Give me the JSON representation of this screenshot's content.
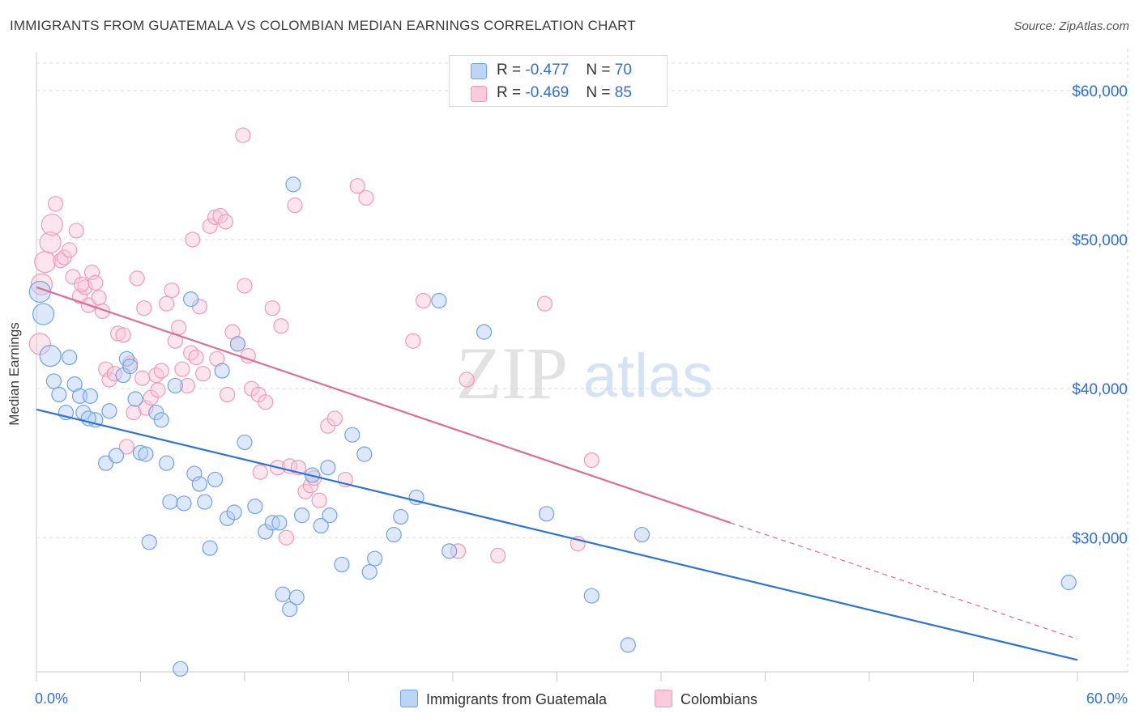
{
  "header": {
    "title": "IMMIGRANTS FROM GUATEMALA VS COLOMBIAN MEDIAN EARNINGS CORRELATION CHART",
    "source": "Source: ZipAtlas.com"
  },
  "watermark": {
    "zip": "ZIP",
    "atlas": "atlas"
  },
  "legend": {
    "rows": [
      {
        "r_label": "R = ",
        "r_value": "-0.477",
        "n_label": "N = ",
        "n_value": "70"
      },
      {
        "r_label": "R = ",
        "r_value": "-0.469",
        "n_label": "N = ",
        "n_value": "85"
      }
    ]
  },
  "chart_data": {
    "type": "scatter",
    "title": "IMMIGRANTS FROM GUATEMALA VS COLOMBIAN MEDIAN EARNINGS CORRELATION CHART",
    "xlabel": "",
    "ylabel": "Median Earnings",
    "xlim": [
      0,
      60
    ],
    "ylim": [
      21000,
      62000
    ],
    "x_tick_labels": [
      "0.0%",
      "60.0%"
    ],
    "y_ticks": [
      30000,
      40000,
      50000,
      60000
    ],
    "y_tick_labels": [
      "$30,000",
      "$40,000",
      "$50,000",
      "$60,000"
    ],
    "grid": true,
    "legend_position": "top-center",
    "colors": {
      "guatemala": "#6fa3e8",
      "guatemala_line": "#2b74d3",
      "colombians": "#f29ab7",
      "colombians_line": "#e06b95",
      "tick_label": "#2f6fd6"
    },
    "series": [
      {
        "name": "Immigrants from Guatemala",
        "r": -0.477,
        "n": 70,
        "trend": {
          "x": [
            0,
            60
          ],
          "y": [
            38600,
            21800
          ]
        },
        "points": [
          [
            0.2,
            46500
          ],
          [
            0.4,
            45000
          ],
          [
            0.8,
            42200
          ],
          [
            1.0,
            40500
          ],
          [
            1.3,
            39600
          ],
          [
            1.7,
            38400
          ],
          [
            1.9,
            42100
          ],
          [
            2.2,
            40300
          ],
          [
            2.5,
            39500
          ],
          [
            2.7,
            38400
          ],
          [
            3.1,
            39500
          ],
          [
            3.4,
            37900
          ],
          [
            4.0,
            35000
          ],
          [
            4.2,
            38500
          ],
          [
            4.6,
            35500
          ],
          [
            5.0,
            40900
          ],
          [
            5.2,
            42000
          ],
          [
            5.4,
            41500
          ],
          [
            5.7,
            39300
          ],
          [
            6.0,
            35700
          ],
          [
            6.3,
            35600
          ],
          [
            6.5,
            29700
          ],
          [
            6.9,
            38400
          ],
          [
            7.2,
            37900
          ],
          [
            7.5,
            35000
          ],
          [
            7.7,
            32400
          ],
          [
            8.0,
            40200
          ],
          [
            8.3,
            21200
          ],
          [
            8.5,
            32300
          ],
          [
            8.9,
            46000
          ],
          [
            9.1,
            34300
          ],
          [
            9.4,
            33600
          ],
          [
            9.7,
            32400
          ],
          [
            10.0,
            29300
          ],
          [
            10.3,
            33900
          ],
          [
            10.7,
            41200
          ],
          [
            11.0,
            31300
          ],
          [
            11.4,
            31700
          ],
          [
            11.6,
            43000
          ],
          [
            12.0,
            36400
          ],
          [
            12.6,
            32100
          ],
          [
            13.2,
            30400
          ],
          [
            13.6,
            31000
          ],
          [
            14.0,
            31000
          ],
          [
            14.2,
            26200
          ],
          [
            14.6,
            25200
          ],
          [
            14.8,
            53700
          ],
          [
            15.0,
            26000
          ],
          [
            15.3,
            31500
          ],
          [
            15.9,
            34200
          ],
          [
            16.4,
            30800
          ],
          [
            16.8,
            34700
          ],
          [
            16.9,
            31500
          ],
          [
            17.6,
            28200
          ],
          [
            18.2,
            36900
          ],
          [
            18.9,
            35600
          ],
          [
            19.2,
            27700
          ],
          [
            19.5,
            28600
          ],
          [
            20.6,
            30200
          ],
          [
            21.0,
            31400
          ],
          [
            21.9,
            32700
          ],
          [
            23.2,
            45900
          ],
          [
            23.8,
            29100
          ],
          [
            25.8,
            43800
          ],
          [
            29.4,
            31600
          ],
          [
            32.0,
            26100
          ],
          [
            34.1,
            22800
          ],
          [
            34.9,
            30200
          ],
          [
            59.5,
            27000
          ],
          [
            3.0,
            38000
          ]
        ]
      },
      {
        "name": "Colombians",
        "r": -0.469,
        "n": 85,
        "trend": {
          "x": [
            0,
            40
          ],
          "y": [
            46800,
            31000
          ]
        },
        "trend_dashed": {
          "x": [
            40,
            60
          ],
          "y": [
            31000,
            23200
          ]
        },
        "points": [
          [
            0.2,
            43000
          ],
          [
            0.3,
            47000
          ],
          [
            0.5,
            48500
          ],
          [
            0.8,
            49800
          ],
          [
            0.9,
            51000
          ],
          [
            1.1,
            52400
          ],
          [
            1.4,
            48600
          ],
          [
            1.6,
            48800
          ],
          [
            1.9,
            49300
          ],
          [
            2.1,
            47500
          ],
          [
            2.3,
            50600
          ],
          [
            2.5,
            46200
          ],
          [
            2.8,
            46800
          ],
          [
            3.0,
            45600
          ],
          [
            3.2,
            47800
          ],
          [
            3.4,
            47100
          ],
          [
            3.6,
            46100
          ],
          [
            3.8,
            45200
          ],
          [
            4.0,
            41300
          ],
          [
            4.2,
            40600
          ],
          [
            4.5,
            41000
          ],
          [
            4.7,
            43700
          ],
          [
            5.0,
            43600
          ],
          [
            5.2,
            36100
          ],
          [
            5.4,
            41700
          ],
          [
            5.8,
            47400
          ],
          [
            6.1,
            40700
          ],
          [
            6.2,
            45400
          ],
          [
            6.3,
            38700
          ],
          [
            6.6,
            39400
          ],
          [
            6.9,
            40900
          ],
          [
            7.2,
            41200
          ],
          [
            7.5,
            45700
          ],
          [
            7.8,
            46600
          ],
          [
            8.0,
            43200
          ],
          [
            8.2,
            44100
          ],
          [
            8.4,
            41300
          ],
          [
            8.7,
            40200
          ],
          [
            8.9,
            42400
          ],
          [
            9.0,
            50000
          ],
          [
            9.2,
            42100
          ],
          [
            9.4,
            45500
          ],
          [
            9.6,
            41000
          ],
          [
            10.0,
            50900
          ],
          [
            10.3,
            51500
          ],
          [
            10.4,
            42000
          ],
          [
            10.6,
            51600
          ],
          [
            10.9,
            51200
          ],
          [
            11.0,
            39600
          ],
          [
            11.3,
            43800
          ],
          [
            11.6,
            43000
          ],
          [
            11.9,
            57000
          ],
          [
            12.0,
            46900
          ],
          [
            12.2,
            42200
          ],
          [
            12.4,
            40000
          ],
          [
            12.8,
            39600
          ],
          [
            13.2,
            39100
          ],
          [
            13.6,
            45400
          ],
          [
            13.9,
            34700
          ],
          [
            14.1,
            44200
          ],
          [
            14.4,
            30000
          ],
          [
            14.6,
            34800
          ],
          [
            14.9,
            52300
          ],
          [
            15.1,
            34700
          ],
          [
            15.5,
            33100
          ],
          [
            15.8,
            33500
          ],
          [
            16.0,
            34000
          ],
          [
            16.3,
            32500
          ],
          [
            16.8,
            37500
          ],
          [
            17.2,
            38000
          ],
          [
            17.8,
            33900
          ],
          [
            18.5,
            53600
          ],
          [
            19.0,
            52800
          ],
          [
            21.7,
            43200
          ],
          [
            22.3,
            45900
          ],
          [
            24.3,
            29100
          ],
          [
            24.8,
            40600
          ],
          [
            26.6,
            28800
          ],
          [
            29.3,
            45700
          ],
          [
            31.2,
            29600
          ],
          [
            32.0,
            35200
          ],
          [
            2.6,
            47000
          ],
          [
            5.6,
            38400
          ],
          [
            7.0,
            39900
          ],
          [
            12.9,
            34400
          ]
        ]
      }
    ]
  }
}
